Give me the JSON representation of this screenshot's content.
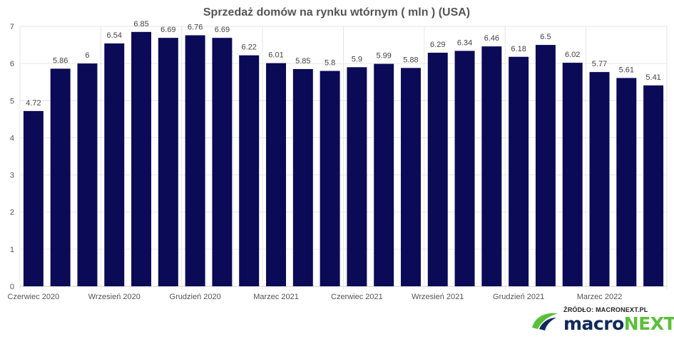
{
  "chart_data": {
    "type": "bar",
    "title": "Sprzedaż domów na rynku wtórnym ( mln ) (USA)",
    "xlabel": "",
    "ylabel": "",
    "ylim": [
      0,
      7
    ],
    "yticks": [
      0,
      1,
      2,
      3,
      4,
      5,
      6,
      7
    ],
    "grid": true,
    "legend": "none",
    "bar_color": "#0b0a57",
    "categories": [
      "Czerwiec 2020",
      "",
      "",
      "Wrzesień 2020",
      "",
      "",
      "Grudzień 2020",
      "",
      "",
      "Marzec 2021",
      "",
      "",
      "Czerwiec 2021",
      "",
      "",
      "Wrzesień 2021",
      "",
      "",
      "Grudzień 2021",
      "",
      "",
      "Marzec 2022",
      "",
      ""
    ],
    "values": [
      4.72,
      5.86,
      6,
      6.54,
      6.85,
      6.69,
      6.76,
      6.69,
      6.22,
      6.01,
      5.85,
      5.8,
      5.9,
      5.99,
      5.88,
      6.29,
      6.34,
      6.46,
      6.18,
      6.5,
      6.02,
      5.77,
      5.61,
      5.41
    ]
  },
  "branding": {
    "source": "ŹRÓDŁO: MACRONEXT.PL",
    "name_part1": "macro",
    "name_part2": "NEXT",
    "color_dark": "#0e2a5c",
    "color_green": "#5bbf3a"
  }
}
